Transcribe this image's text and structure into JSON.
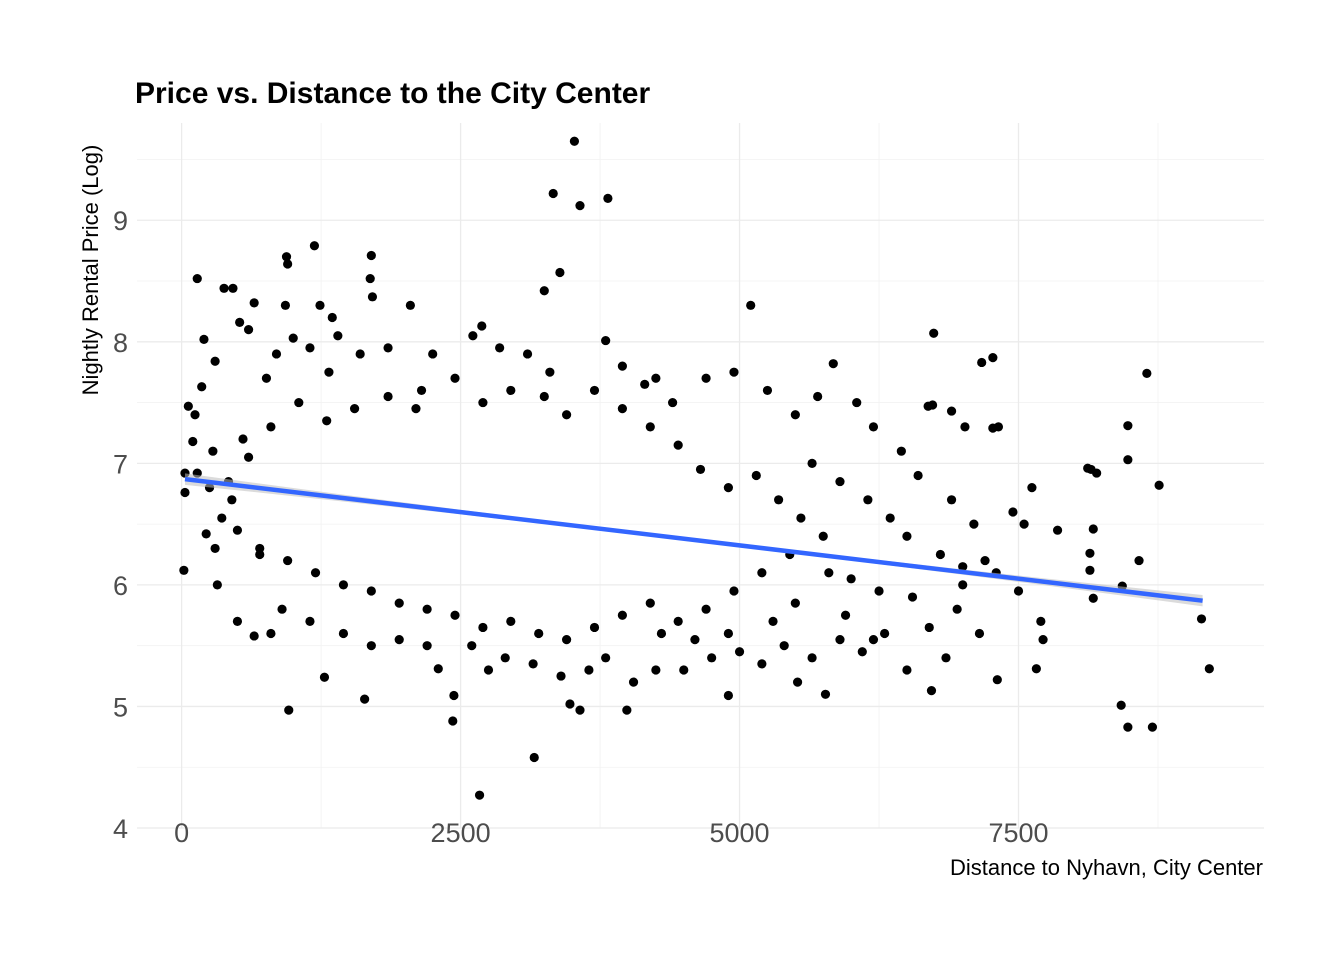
{
  "chart_data": {
    "type": "scatter",
    "title": "Price vs. Distance to the City Center",
    "xlabel": "Distance to Nyhavn, City Center",
    "ylabel": "Nightly Rental Price (Log)",
    "xlim": [
      -400,
      9700
    ],
    "ylim": [
      4.0,
      9.8
    ],
    "x_ticks": [
      0,
      2500,
      5000,
      7500
    ],
    "x_tick_labels": [
      "0",
      "2500",
      "5000",
      "7500"
    ],
    "y_ticks": [
      4,
      5,
      6,
      7,
      8,
      9
    ],
    "y_tick_labels": [
      "4",
      "5",
      "6",
      "7",
      "8",
      "9"
    ],
    "grid": true,
    "legend": "none",
    "trendline": {
      "method": "linear",
      "x": [
        30,
        9150
      ],
      "y": [
        6.87,
        5.87
      ],
      "color": "#3366ff",
      "confidence_band": true
    },
    "series": [
      {
        "color": "#000000",
        "points": [
          [
            3520,
            9.65
          ],
          [
            3330,
            9.22
          ],
          [
            3820,
            9.18
          ],
          [
            3570,
            9.12
          ],
          [
            1190,
            8.79
          ],
          [
            940,
            8.7
          ],
          [
            1700,
            8.71
          ],
          [
            950,
            8.64
          ],
          [
            3390,
            8.57
          ],
          [
            140,
            8.52
          ],
          [
            1690,
            8.52
          ],
          [
            3250,
            8.42
          ],
          [
            380,
            8.44
          ],
          [
            460,
            8.44
          ],
          [
            1710,
            8.37
          ],
          [
            5100,
            8.3
          ],
          [
            1240,
            8.3
          ],
          [
            2050,
            8.3
          ],
          [
            930,
            8.3
          ],
          [
            2690,
            8.13
          ],
          [
            2610,
            8.05
          ],
          [
            6740,
            8.07
          ],
          [
            7270,
            7.87
          ],
          [
            7170,
            7.83
          ],
          [
            8650,
            7.74
          ],
          [
            5840,
            7.82
          ],
          [
            6730,
            7.48
          ],
          [
            6690,
            7.47
          ],
          [
            6900,
            7.43
          ],
          [
            7320,
            7.3
          ],
          [
            7270,
            7.29
          ],
          [
            7020,
            7.3
          ],
          [
            8480,
            7.31
          ],
          [
            8760,
            6.82
          ],
          [
            8120,
            6.96
          ],
          [
            8200,
            6.92
          ],
          [
            8480,
            7.03
          ],
          [
            7620,
            6.8
          ],
          [
            8170,
            6.46
          ],
          [
            8140,
            6.26
          ],
          [
            8140,
            6.12
          ],
          [
            8580,
            6.2
          ],
          [
            8170,
            5.89
          ],
          [
            8430,
            5.99
          ],
          [
            9140,
            5.72
          ],
          [
            9210,
            5.31
          ],
          [
            8420,
            5.01
          ],
          [
            8480,
            4.83
          ],
          [
            8700,
            4.83
          ],
          [
            7700,
            5.7
          ],
          [
            7720,
            5.55
          ],
          [
            7660,
            5.31
          ],
          [
            7310,
            5.22
          ],
          [
            6720,
            5.13
          ],
          [
            5770,
            5.1
          ],
          [
            5520,
            5.2
          ],
          [
            4900,
            5.09
          ],
          [
            3570,
            4.97
          ],
          [
            3990,
            4.97
          ],
          [
            2430,
            4.88
          ],
          [
            3160,
            4.58
          ],
          [
            2670,
            4.27
          ],
          [
            960,
            4.97
          ],
          [
            1640,
            5.06
          ],
          [
            2440,
            5.09
          ],
          [
            3480,
            5.02
          ],
          [
            2300,
            5.31
          ],
          [
            1280,
            5.24
          ],
          [
            20,
            6.12
          ],
          [
            30,
            6.92
          ],
          [
            30,
            6.76
          ],
          [
            60,
            7.47
          ],
          [
            120,
            7.4
          ],
          [
            140,
            6.92
          ],
          [
            100,
            7.18
          ],
          [
            180,
            7.63
          ],
          [
            300,
            7.84
          ],
          [
            200,
            8.02
          ],
          [
            520,
            8.16
          ],
          [
            600,
            8.1
          ],
          [
            650,
            8.32
          ],
          [
            320,
            6.0
          ],
          [
            500,
            5.7
          ],
          [
            650,
            5.58
          ],
          [
            280,
            7.1
          ],
          [
            360,
            6.55
          ],
          [
            220,
            6.42
          ],
          [
            420,
            6.85
          ],
          [
            550,
            7.2
          ],
          [
            700,
            6.3
          ],
          [
            4400,
            7.5
          ],
          [
            4700,
            7.7
          ],
          [
            4950,
            7.75
          ],
          [
            5250,
            7.6
          ],
          [
            5500,
            7.4
          ],
          [
            5700,
            7.55
          ],
          [
            6050,
            7.5
          ],
          [
            6200,
            7.3
          ],
          [
            6450,
            7.1
          ],
          [
            6600,
            6.9
          ],
          [
            6900,
            6.7
          ],
          [
            7100,
            6.5
          ],
          [
            7200,
            6.2
          ],
          [
            7450,
            6.6
          ],
          [
            7550,
            6.5
          ],
          [
            7000,
            6.0
          ],
          [
            6950,
            5.8
          ],
          [
            6700,
            5.65
          ],
          [
            6550,
            5.9
          ],
          [
            6300,
            5.6
          ],
          [
            6100,
            5.45
          ],
          [
            5900,
            5.55
          ],
          [
            5650,
            5.4
          ],
          [
            5400,
            5.5
          ],
          [
            5200,
            5.35
          ],
          [
            5000,
            5.45
          ],
          [
            4750,
            5.4
          ],
          [
            4500,
            5.3
          ],
          [
            4250,
            5.3
          ],
          [
            4050,
            5.2
          ],
          [
            3800,
            5.4
          ],
          [
            3650,
            5.3
          ],
          [
            3400,
            5.25
          ],
          [
            3150,
            5.35
          ],
          [
            2900,
            5.4
          ],
          [
            2750,
            5.3
          ],
          [
            2600,
            5.5
          ],
          [
            2200,
            5.5
          ],
          [
            1950,
            5.55
          ],
          [
            1700,
            5.5
          ],
          [
            1450,
            5.6
          ],
          [
            1150,
            5.7
          ],
          [
            900,
            5.8
          ],
          [
            800,
            5.6
          ],
          [
            1600,
            7.9
          ],
          [
            1400,
            8.05
          ],
          [
            1350,
            8.2
          ],
          [
            1850,
            7.95
          ],
          [
            2250,
            7.9
          ],
          [
            2850,
            7.95
          ],
          [
            3100,
            7.9
          ],
          [
            3300,
            7.75
          ],
          [
            3800,
            8.01
          ],
          [
            3950,
            7.8
          ],
          [
            4150,
            7.65
          ],
          [
            4250,
            7.7
          ],
          [
            2150,
            7.6
          ],
          [
            1000,
            8.03
          ],
          [
            1150,
            7.95
          ],
          [
            850,
            7.9
          ],
          [
            760,
            7.7
          ],
          [
            1320,
            7.75
          ],
          [
            5650,
            7.0
          ],
          [
            5900,
            6.85
          ],
          [
            6150,
            6.7
          ],
          [
            6350,
            6.55
          ],
          [
            6500,
            6.4
          ],
          [
            6800,
            6.25
          ],
          [
            7000,
            6.15
          ],
          [
            7300,
            6.1
          ],
          [
            5800,
            6.1
          ],
          [
            6000,
            6.05
          ],
          [
            6250,
            5.95
          ],
          [
            5500,
            5.85
          ],
          [
            5300,
            5.7
          ],
          [
            4900,
            5.6
          ],
          [
            4600,
            5.55
          ],
          [
            4300,
            5.6
          ],
          [
            4650,
            6.95
          ],
          [
            4900,
            6.8
          ],
          [
            5150,
            6.9
          ],
          [
            5350,
            6.7
          ],
          [
            5550,
            6.55
          ],
          [
            4450,
            7.15
          ],
          [
            4200,
            7.3
          ],
          [
            3950,
            7.45
          ],
          [
            3700,
            7.6
          ],
          [
            3450,
            7.4
          ],
          [
            3250,
            7.55
          ],
          [
            2950,
            7.6
          ],
          [
            2700,
            7.5
          ],
          [
            2450,
            7.7
          ],
          [
            2100,
            7.45
          ],
          [
            1850,
            7.55
          ],
          [
            1550,
            7.45
          ],
          [
            1300,
            7.35
          ],
          [
            1050,
            7.5
          ],
          [
            800,
            7.3
          ],
          [
            600,
            7.05
          ],
          [
            450,
            6.7
          ],
          [
            300,
            6.3
          ],
          [
            250,
            6.8
          ],
          [
            8150,
            6.95
          ],
          [
            7850,
            6.45
          ],
          [
            7500,
            5.95
          ],
          [
            7150,
            5.6
          ],
          [
            6850,
            5.4
          ],
          [
            6500,
            5.3
          ],
          [
            6200,
            5.55
          ],
          [
            5950,
            5.75
          ],
          [
            5750,
            6.4
          ],
          [
            5450,
            6.25
          ],
          [
            5200,
            6.1
          ],
          [
            4950,
            5.95
          ],
          [
            4700,
            5.8
          ],
          [
            4450,
            5.7
          ],
          [
            4200,
            5.85
          ],
          [
            3950,
            5.75
          ],
          [
            3700,
            5.65
          ],
          [
            3450,
            5.55
          ],
          [
            3200,
            5.6
          ],
          [
            2950,
            5.7
          ],
          [
            2700,
            5.65
          ],
          [
            2450,
            5.75
          ],
          [
            2200,
            5.8
          ],
          [
            1950,
            5.85
          ],
          [
            1700,
            5.95
          ],
          [
            1450,
            6.0
          ],
          [
            1200,
            6.1
          ],
          [
            950,
            6.2
          ],
          [
            700,
            6.25
          ],
          [
            500,
            6.45
          ]
        ]
      }
    ]
  }
}
